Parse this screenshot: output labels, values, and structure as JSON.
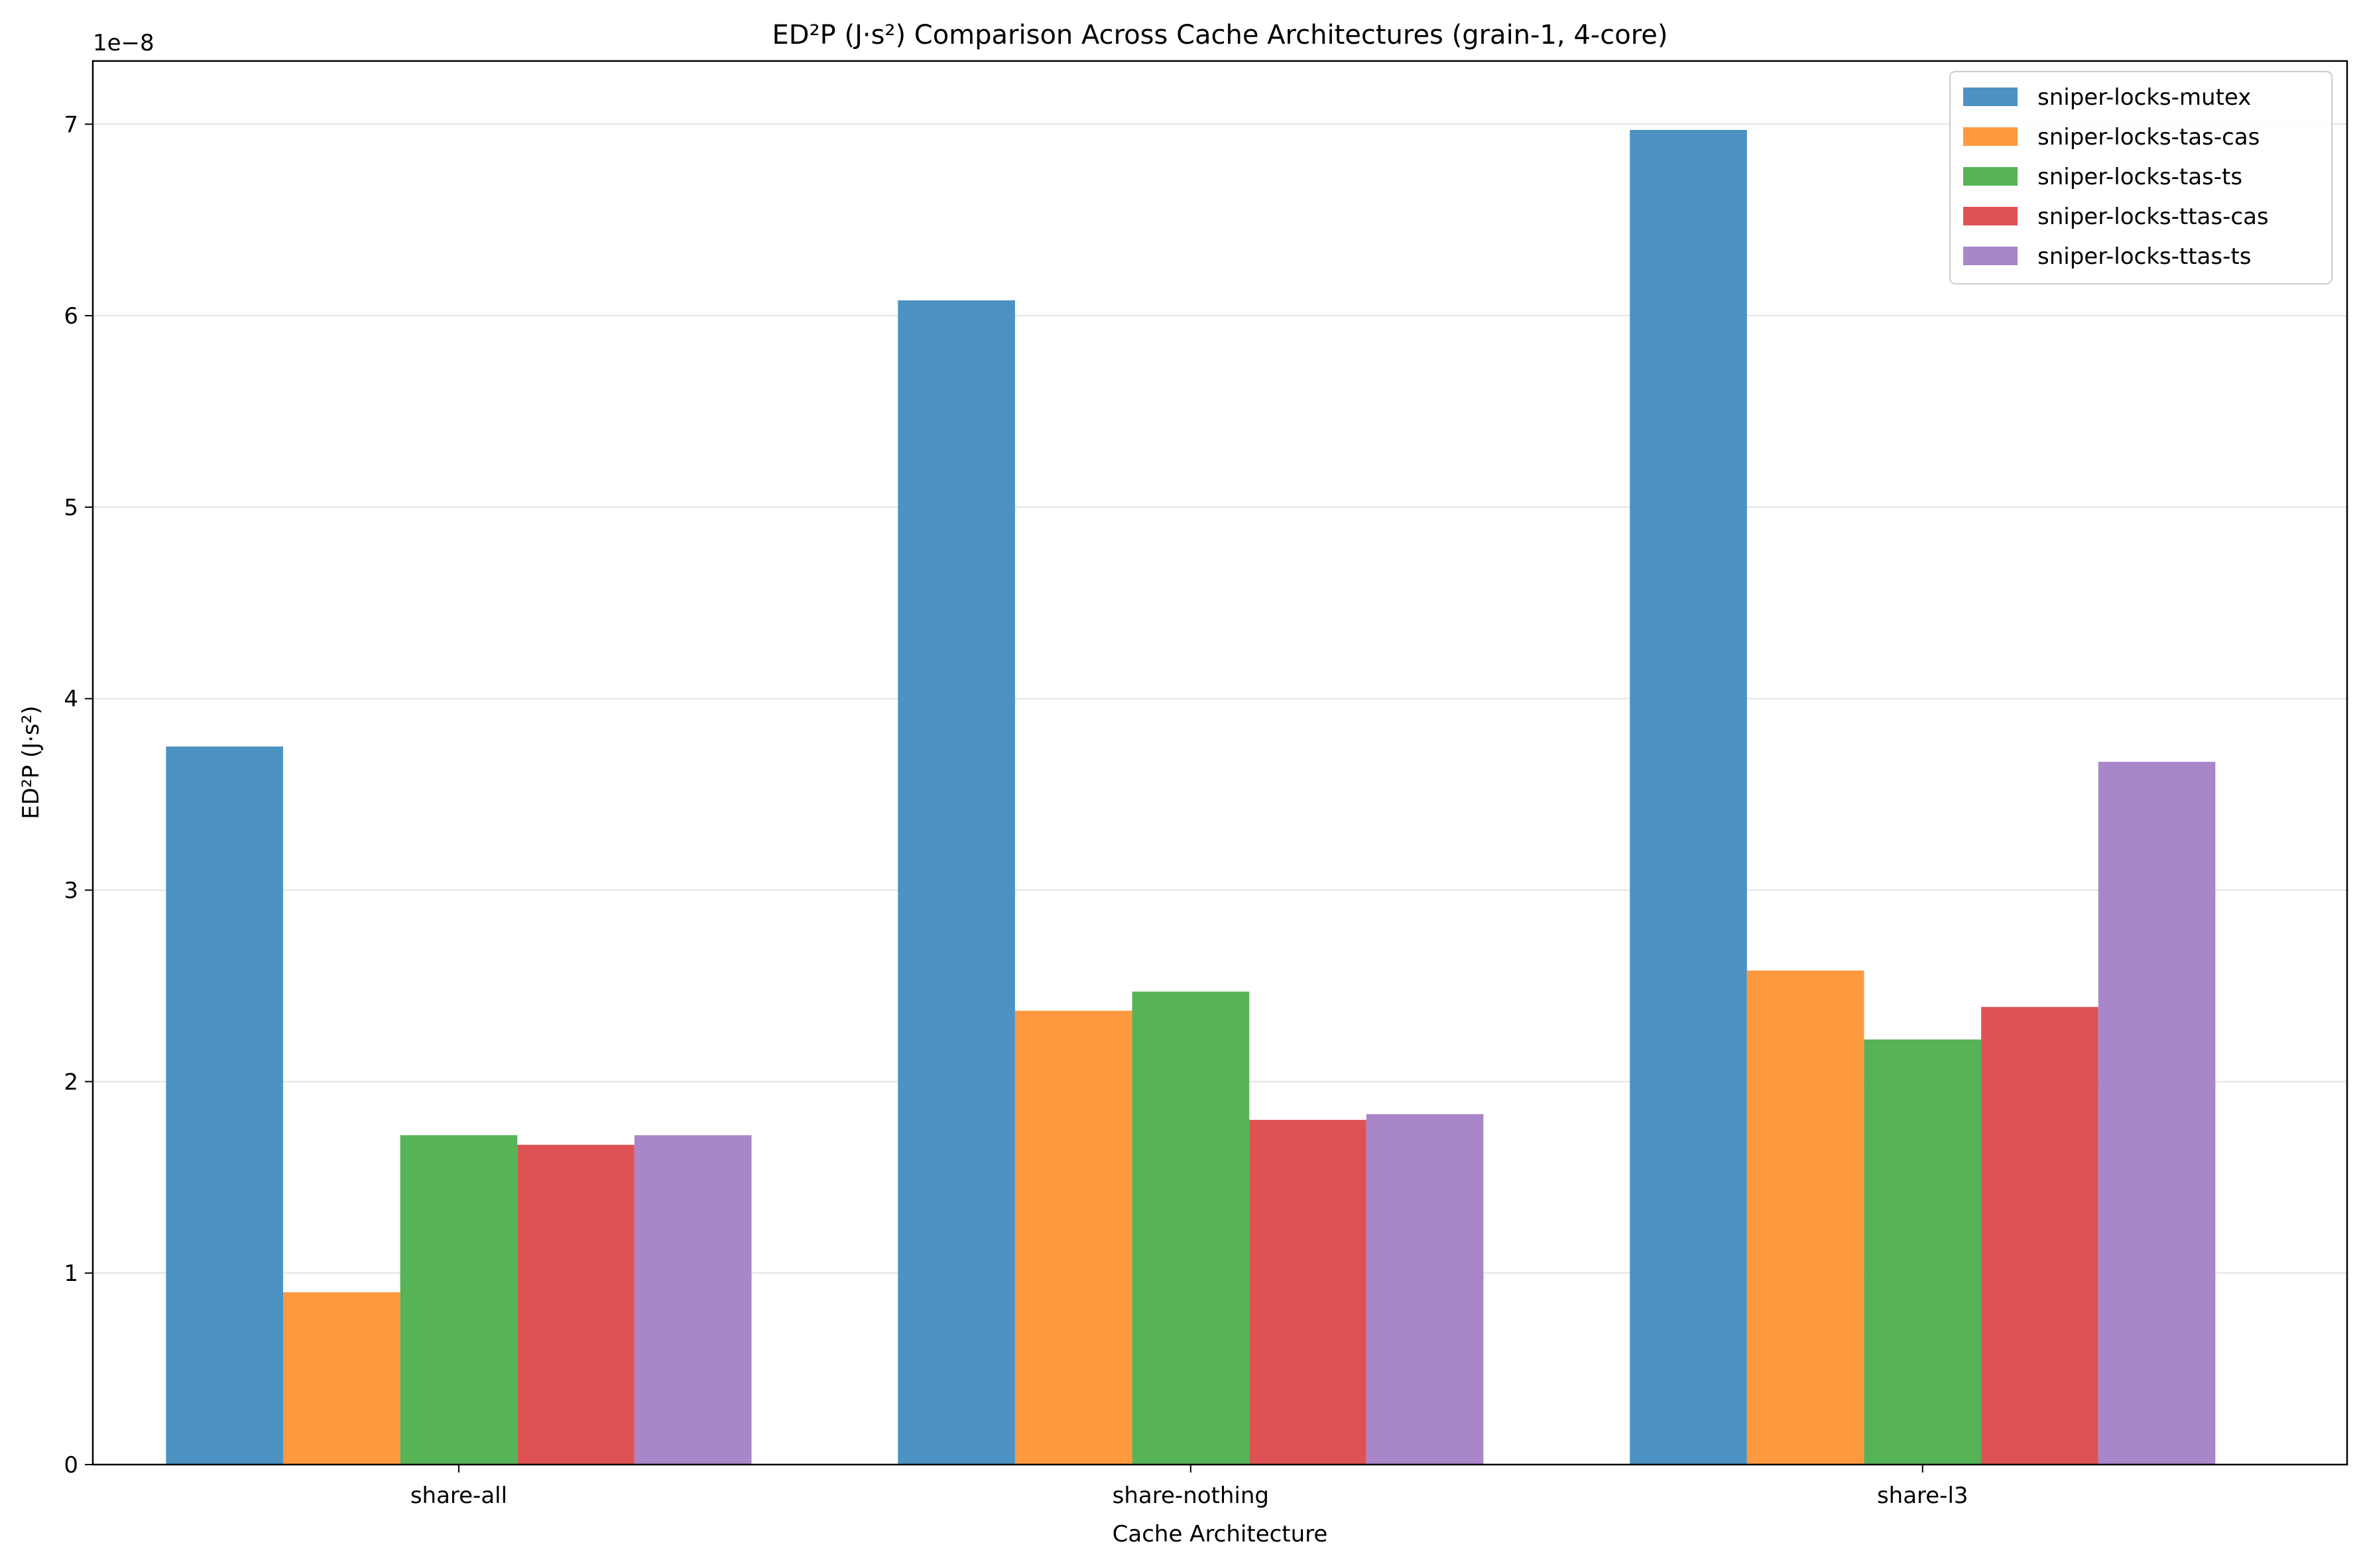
{
  "chart_data": {
    "type": "bar",
    "title": "ED²P (J·s²) Comparison Across Cache Architectures (grain-1, 4-core)",
    "xlabel": "Cache Architecture",
    "ylabel": "ED²P (J·s²)",
    "y_scale_label": "1e−8",
    "ylim": [
      0,
      7.33
    ],
    "yticks": [
      0,
      1,
      2,
      3,
      4,
      5,
      6,
      7
    ],
    "grid": true,
    "legend_position": "top-right",
    "categories": [
      "share-all",
      "share-nothing",
      "share-l3"
    ],
    "series": [
      {
        "name": "sniper-locks-mutex",
        "color": "#4c92c3",
        "values": [
          3.75,
          6.08,
          6.97
        ]
      },
      {
        "name": "sniper-locks-tas-cas",
        "color": "#ff993f",
        "values": [
          0.9,
          2.37,
          2.58
        ]
      },
      {
        "name": "sniper-locks-tas-ts",
        "color": "#56b356",
        "values": [
          1.72,
          2.47,
          2.22
        ]
      },
      {
        "name": "sniper-locks-ttas-cas",
        "color": "#de5253",
        "values": [
          1.67,
          1.8,
          2.39
        ]
      },
      {
        "name": "sniper-locks-ttas-ts",
        "color": "#a986c9",
        "values": [
          1.72,
          1.83,
          3.67
        ]
      }
    ]
  }
}
